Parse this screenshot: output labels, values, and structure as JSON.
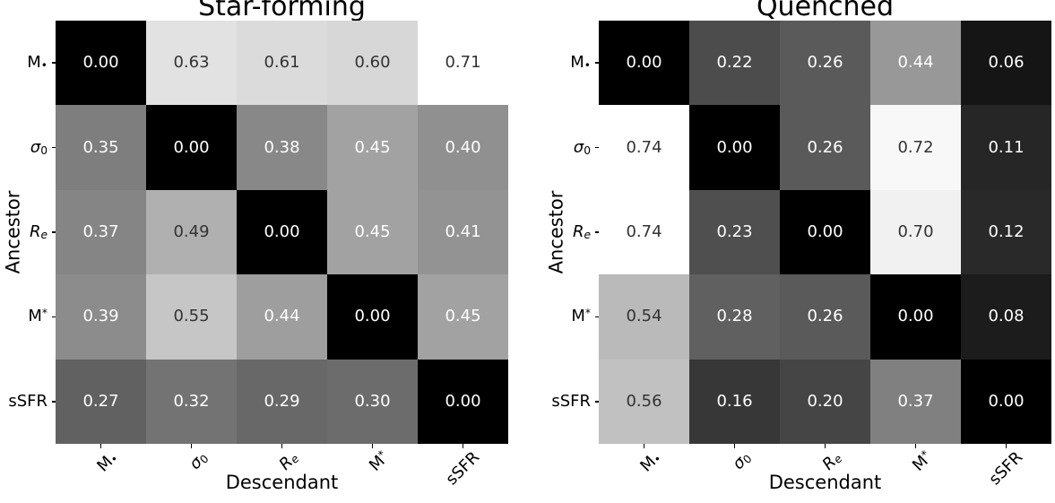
{
  "figure": {
    "background": "#ffffff",
    "axis_text_color": "#000000"
  },
  "colors": {
    "cell_text_dark": "#333333",
    "cell_text_light": "#ffffff",
    "colormap_low": "#000000",
    "colormap_high": "#ffffff"
  },
  "chart_data": [
    {
      "type": "heatmap",
      "title": "Star-forming",
      "xlabel": "Descendant",
      "ylabel": "Ancestor",
      "colormap": "gray",
      "vmin": 0.0,
      "vmax": 0.71,
      "value_decimals": 2,
      "categories": [
        {
          "main": "M",
          "script": "•",
          "pos": "sub",
          "italic": false
        },
        {
          "main": "σ",
          "script": "0",
          "pos": "sub",
          "italic": true
        },
        {
          "main": "R",
          "script": "e",
          "pos": "sub",
          "italic": true
        },
        {
          "main": "M",
          "script": "*",
          "pos": "sup",
          "italic": false
        },
        {
          "main": "sSFR",
          "script": "",
          "pos": "",
          "italic": false
        }
      ],
      "matrix": [
        [
          0.0,
          0.63,
          0.61,
          0.6,
          0.71
        ],
        [
          0.35,
          0.0,
          0.38,
          0.45,
          0.4
        ],
        [
          0.37,
          0.49,
          0.0,
          0.45,
          0.41
        ],
        [
          0.39,
          0.55,
          0.44,
          0.0,
          0.45
        ],
        [
          0.27,
          0.32,
          0.29,
          0.3,
          0.0
        ]
      ]
    },
    {
      "type": "heatmap",
      "title": "Quenched",
      "xlabel": "Descendant",
      "ylabel": "Ancestor",
      "colormap": "gray",
      "vmin": 0.0,
      "vmax": 0.74,
      "value_decimals": 2,
      "categories": [
        {
          "main": "M",
          "script": "•",
          "pos": "sub",
          "italic": false
        },
        {
          "main": "σ",
          "script": "0",
          "pos": "sub",
          "italic": true
        },
        {
          "main": "R",
          "script": "e",
          "pos": "sub",
          "italic": true
        },
        {
          "main": "M",
          "script": "*",
          "pos": "sup",
          "italic": false
        },
        {
          "main": "sSFR",
          "script": "",
          "pos": "",
          "italic": false
        }
      ],
      "matrix": [
        [
          0.0,
          0.22,
          0.26,
          0.44,
          0.06
        ],
        [
          0.74,
          0.0,
          0.26,
          0.72,
          0.11
        ],
        [
          0.74,
          0.23,
          0.0,
          0.7,
          0.12
        ],
        [
          0.54,
          0.28,
          0.26,
          0.0,
          0.08
        ],
        [
          0.56,
          0.16,
          0.2,
          0.37,
          0.0
        ]
      ]
    }
  ]
}
